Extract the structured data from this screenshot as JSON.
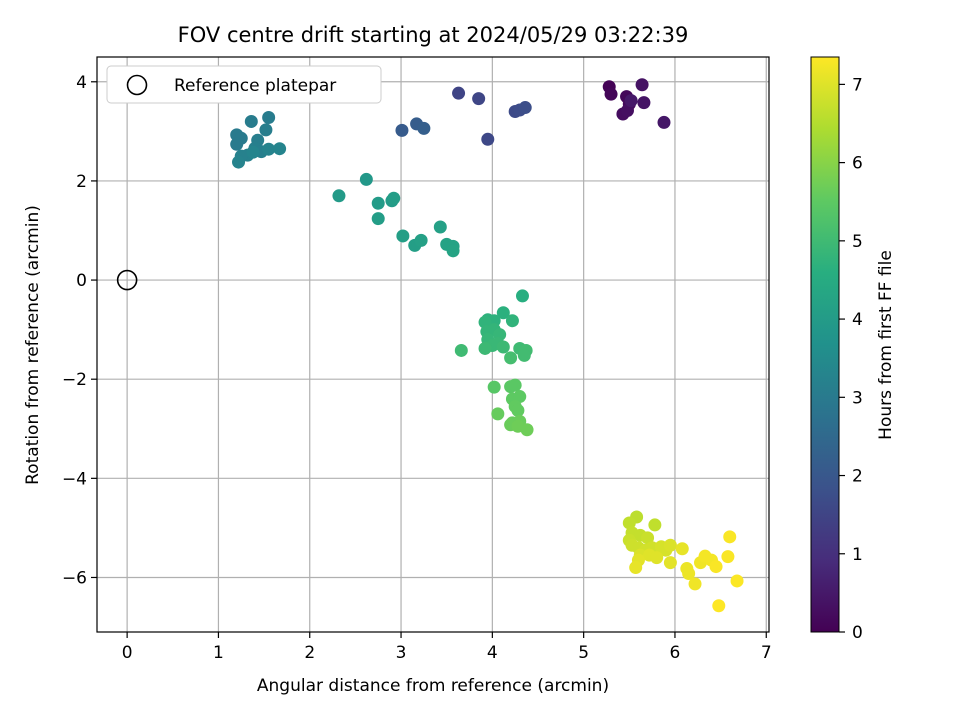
{
  "chart_data": {
    "type": "scatter",
    "title": "FOV centre drift starting at 2024/05/29 03:22:39",
    "xlabel": "Angular distance from reference (arcmin)",
    "ylabel": "Rotation from reference (arcmin)",
    "xlim": [
      -0.33,
      7.03
    ],
    "ylim": [
      -7.1,
      4.5
    ],
    "xticks": [
      0,
      1,
      2,
      3,
      4,
      5,
      6,
      7
    ],
    "yticks": [
      -6,
      -4,
      -2,
      0,
      2,
      4
    ],
    "xtick_labels": [
      "0",
      "1",
      "2",
      "3",
      "4",
      "5",
      "6",
      "7"
    ],
    "ytick_labels": [
      "−6",
      "−4",
      "−2",
      "0",
      "2",
      "4"
    ],
    "grid": true,
    "legend": {
      "placement": "top-left",
      "entries": [
        "Reference platepar"
      ]
    },
    "reference_point": {
      "x": 0,
      "y": 0,
      "label": "Reference platepar"
    },
    "colorbar": {
      "label": "Hours from first FF file",
      "colormap": "viridis",
      "range": [
        0,
        7.35
      ],
      "ticks": [
        0,
        1,
        2,
        3,
        4,
        5,
        6,
        7
      ],
      "tick_labels": [
        "0",
        "1",
        "2",
        "3",
        "4",
        "5",
        "6",
        "7"
      ]
    },
    "points": [
      {
        "x": 5.28,
        "y": 3.9,
        "c": 0.05
      },
      {
        "x": 5.3,
        "y": 3.75,
        "c": 0.1
      },
      {
        "x": 5.47,
        "y": 3.7,
        "c": 0.15
      },
      {
        "x": 5.5,
        "y": 3.55,
        "c": 0.2
      },
      {
        "x": 5.43,
        "y": 3.35,
        "c": 0.25
      },
      {
        "x": 5.48,
        "y": 3.42,
        "c": 0.3
      },
      {
        "x": 5.64,
        "y": 3.94,
        "c": 0.35
      },
      {
        "x": 5.66,
        "y": 3.58,
        "c": 0.4
      },
      {
        "x": 5.88,
        "y": 3.18,
        "c": 0.45
      },
      {
        "x": 5.52,
        "y": 3.62,
        "c": 0.5
      },
      {
        "x": 3.63,
        "y": 3.77,
        "c": 1.5
      },
      {
        "x": 3.85,
        "y": 3.66,
        "c": 1.55
      },
      {
        "x": 3.95,
        "y": 2.84,
        "c": 1.6
      },
      {
        "x": 4.25,
        "y": 3.4,
        "c": 1.65
      },
      {
        "x": 4.3,
        "y": 3.43,
        "c": 1.7
      },
      {
        "x": 4.36,
        "y": 3.48,
        "c": 1.75
      },
      {
        "x": 3.01,
        "y": 3.02,
        "c": 2.1
      },
      {
        "x": 3.17,
        "y": 3.15,
        "c": 2.15
      },
      {
        "x": 3.25,
        "y": 3.06,
        "c": 2.2
      },
      {
        "x": 1.2,
        "y": 2.93,
        "c": 3.0
      },
      {
        "x": 1.25,
        "y": 2.86,
        "c": 3.0
      },
      {
        "x": 1.2,
        "y": 2.74,
        "c": 3.0
      },
      {
        "x": 1.36,
        "y": 3.2,
        "c": 3.05
      },
      {
        "x": 1.55,
        "y": 3.28,
        "c": 3.05
      },
      {
        "x": 1.52,
        "y": 3.03,
        "c": 3.1
      },
      {
        "x": 1.43,
        "y": 2.82,
        "c": 3.1
      },
      {
        "x": 1.4,
        "y": 2.66,
        "c": 3.15
      },
      {
        "x": 1.47,
        "y": 2.59,
        "c": 3.15
      },
      {
        "x": 1.32,
        "y": 2.52,
        "c": 3.2
      },
      {
        "x": 1.25,
        "y": 2.5,
        "c": 3.2
      },
      {
        "x": 1.22,
        "y": 2.38,
        "c": 3.25
      },
      {
        "x": 1.55,
        "y": 2.64,
        "c": 3.25
      },
      {
        "x": 1.67,
        "y": 2.65,
        "c": 3.3
      },
      {
        "x": 1.38,
        "y": 2.58,
        "c": 3.3
      },
      {
        "x": 2.62,
        "y": 2.03,
        "c": 3.9
      },
      {
        "x": 2.32,
        "y": 1.7,
        "c": 3.95
      },
      {
        "x": 2.75,
        "y": 1.55,
        "c": 4.0
      },
      {
        "x": 2.9,
        "y": 1.6,
        "c": 4.0
      },
      {
        "x": 2.92,
        "y": 1.65,
        "c": 4.05
      },
      {
        "x": 2.75,
        "y": 1.24,
        "c": 4.05
      },
      {
        "x": 3.02,
        "y": 0.89,
        "c": 4.1
      },
      {
        "x": 3.15,
        "y": 0.7,
        "c": 4.1
      },
      {
        "x": 3.22,
        "y": 0.8,
        "c": 4.15
      },
      {
        "x": 3.43,
        "y": 1.07,
        "c": 4.15
      },
      {
        "x": 3.5,
        "y": 0.72,
        "c": 4.2
      },
      {
        "x": 3.57,
        "y": 0.68,
        "c": 4.2
      },
      {
        "x": 3.57,
        "y": 0.59,
        "c": 4.25
      },
      {
        "x": 4.33,
        "y": -0.32,
        "c": 4.6
      },
      {
        "x": 4.12,
        "y": -0.66,
        "c": 4.65
      },
      {
        "x": 3.95,
        "y": -0.8,
        "c": 4.7
      },
      {
        "x": 4.02,
        "y": -0.82,
        "c": 4.7
      },
      {
        "x": 4.22,
        "y": -0.82,
        "c": 4.75
      },
      {
        "x": 3.92,
        "y": -0.85,
        "c": 4.75
      },
      {
        "x": 3.94,
        "y": -1.04,
        "c": 4.8
      },
      {
        "x": 4.02,
        "y": -1.0,
        "c": 4.8
      },
      {
        "x": 4.08,
        "y": -1.1,
        "c": 4.85
      },
      {
        "x": 3.95,
        "y": -1.2,
        "c": 4.85
      },
      {
        "x": 4.0,
        "y": -1.32,
        "c": 4.9
      },
      {
        "x": 4.06,
        "y": -1.28,
        "c": 4.9
      },
      {
        "x": 3.92,
        "y": -1.38,
        "c": 4.95
      },
      {
        "x": 4.12,
        "y": -1.35,
        "c": 4.95
      },
      {
        "x": 3.66,
        "y": -1.42,
        "c": 5.0
      },
      {
        "x": 4.3,
        "y": -1.38,
        "c": 5.0
      },
      {
        "x": 4.37,
        "y": -1.42,
        "c": 5.05
      },
      {
        "x": 4.35,
        "y": -1.52,
        "c": 5.05
      },
      {
        "x": 4.2,
        "y": -1.57,
        "c": 5.1
      },
      {
        "x": 4.02,
        "y": -2.16,
        "c": 5.4
      },
      {
        "x": 4.2,
        "y": -2.15,
        "c": 5.45
      },
      {
        "x": 4.25,
        "y": -2.12,
        "c": 5.45
      },
      {
        "x": 4.22,
        "y": -2.4,
        "c": 5.5
      },
      {
        "x": 4.3,
        "y": -2.35,
        "c": 5.5
      },
      {
        "x": 4.25,
        "y": -2.55,
        "c": 5.55
      },
      {
        "x": 4.28,
        "y": -2.63,
        "c": 5.55
      },
      {
        "x": 4.06,
        "y": -2.7,
        "c": 5.6
      },
      {
        "x": 4.22,
        "y": -2.88,
        "c": 5.6
      },
      {
        "x": 4.3,
        "y": -2.85,
        "c": 5.65
      },
      {
        "x": 4.2,
        "y": -2.92,
        "c": 5.65
      },
      {
        "x": 4.28,
        "y": -2.95,
        "c": 5.7
      },
      {
        "x": 4.38,
        "y": -3.02,
        "c": 5.7
      },
      {
        "x": 5.58,
        "y": -4.78,
        "c": 6.6
      },
      {
        "x": 5.5,
        "y": -4.9,
        "c": 6.65
      },
      {
        "x": 5.78,
        "y": -4.94,
        "c": 6.65
      },
      {
        "x": 5.53,
        "y": -5.1,
        "c": 6.7
      },
      {
        "x": 5.62,
        "y": -5.15,
        "c": 6.7
      },
      {
        "x": 5.7,
        "y": -5.2,
        "c": 6.75
      },
      {
        "x": 5.5,
        "y": -5.25,
        "c": 6.75
      },
      {
        "x": 5.53,
        "y": -5.35,
        "c": 6.8
      },
      {
        "x": 5.6,
        "y": -5.4,
        "c": 6.8
      },
      {
        "x": 5.68,
        "y": -5.45,
        "c": 6.85
      },
      {
        "x": 5.75,
        "y": -5.4,
        "c": 6.85
      },
      {
        "x": 5.85,
        "y": -5.38,
        "c": 6.9
      },
      {
        "x": 5.9,
        "y": -5.45,
        "c": 6.9
      },
      {
        "x": 5.95,
        "y": -5.35,
        "c": 6.95
      },
      {
        "x": 5.62,
        "y": -5.55,
        "c": 6.95
      },
      {
        "x": 5.72,
        "y": -5.55,
        "c": 7.0
      },
      {
        "x": 5.8,
        "y": -5.6,
        "c": 7.0
      },
      {
        "x": 5.95,
        "y": -5.7,
        "c": 7.05
      },
      {
        "x": 5.6,
        "y": -5.65,
        "c": 7.05
      },
      {
        "x": 5.57,
        "y": -5.8,
        "c": 7.1
      },
      {
        "x": 6.08,
        "y": -5.42,
        "c": 7.1
      },
      {
        "x": 6.13,
        "y": -5.82,
        "c": 7.15
      },
      {
        "x": 6.15,
        "y": -5.92,
        "c": 7.15
      },
      {
        "x": 6.22,
        "y": -6.13,
        "c": 7.2
      },
      {
        "x": 6.28,
        "y": -5.7,
        "c": 7.2
      },
      {
        "x": 6.33,
        "y": -5.57,
        "c": 7.25
      },
      {
        "x": 6.4,
        "y": -5.65,
        "c": 7.25
      },
      {
        "x": 6.45,
        "y": -5.78,
        "c": 7.3
      },
      {
        "x": 6.6,
        "y": -5.18,
        "c": 7.3
      },
      {
        "x": 6.58,
        "y": -5.58,
        "c": 7.3
      },
      {
        "x": 6.68,
        "y": -6.07,
        "c": 7.33
      },
      {
        "x": 6.48,
        "y": -6.57,
        "c": 7.35
      }
    ]
  }
}
